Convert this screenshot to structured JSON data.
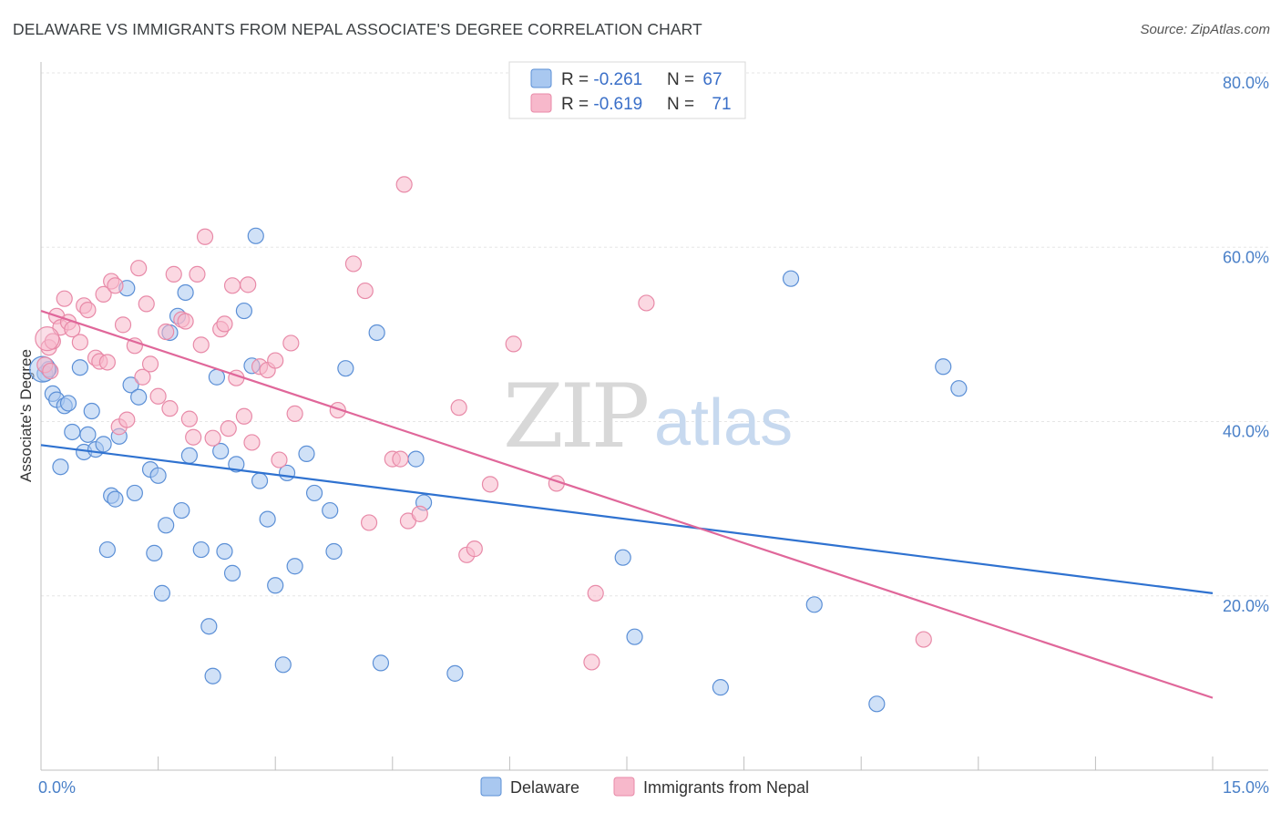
{
  "title": "DELAWARE VS IMMIGRANTS FROM NEPAL ASSOCIATE'S DEGREE CORRELATION CHART",
  "source": "Source: ZipAtlas.com",
  "watermark": {
    "zip": "ZIP",
    "atlas": "atlas"
  },
  "colors": {
    "delaware_fill": "#a9c8f0",
    "delaware_stroke": "#5b8fd6",
    "delaware_line": "#2f72d0",
    "nepal_fill": "#f7b8cb",
    "nepal_stroke": "#e88aa8",
    "nepal_line": "#e0679a",
    "grid": "#e6e6e6",
    "tick_label": "#4a80c8"
  },
  "legend": {
    "rows": [
      {
        "r_label": "R = ",
        "r_value": "-0.261",
        "n_label": "N = ",
        "n_value": "67"
      },
      {
        "r_label": "R = ",
        "r_value": "-0.619",
        "n_label": "N = ",
        "n_value": "71"
      }
    ]
  },
  "bottom_legend": [
    "Delaware",
    "Immigrants from Nepal"
  ],
  "chart_data": {
    "type": "scatter",
    "title": "DELAWARE VS IMMIGRANTS FROM NEPAL ASSOCIATE'S DEGREE CORRELATION CHART",
    "xlabel": "",
    "ylabel": "Associate's Degree",
    "xlim": [
      0,
      15
    ],
    "ylim": [
      0,
      80
    ],
    "x_tick_labels": [
      "0.0%",
      "15.0%"
    ],
    "y_ticks": [
      20,
      40,
      60,
      80
    ],
    "y_tick_labels": [
      "20.0%",
      "40.0%",
      "60.0%",
      "80.0%"
    ],
    "grid": true,
    "legend_position": "top-center",
    "series": [
      {
        "name": "Delaware",
        "r": -0.261,
        "n": 67,
        "trend": {
          "x": [
            0,
            15
          ],
          "y": [
            37.3,
            20.3
          ]
        },
        "points": [
          [
            0.05,
            45.5
          ],
          [
            0.1,
            46
          ],
          [
            0.15,
            43.2
          ],
          [
            0.2,
            42.5
          ],
          [
            0.25,
            34.8
          ],
          [
            0.3,
            41.8
          ],
          [
            0.35,
            42.1
          ],
          [
            0.4,
            38.8
          ],
          [
            0.5,
            46.2
          ],
          [
            0.55,
            36.5
          ],
          [
            0.6,
            38.5
          ],
          [
            0.65,
            41.2
          ],
          [
            0.7,
            36.8
          ],
          [
            0.8,
            37.4
          ],
          [
            0.85,
            25.3
          ],
          [
            0.9,
            31.5
          ],
          [
            0.95,
            31.1
          ],
          [
            1.0,
            38.3
          ],
          [
            1.1,
            55.3
          ],
          [
            1.15,
            44.2
          ],
          [
            1.2,
            31.8
          ],
          [
            1.25,
            42.8
          ],
          [
            1.4,
            34.5
          ],
          [
            1.45,
            24.9
          ],
          [
            1.5,
            33.8
          ],
          [
            1.55,
            20.3
          ],
          [
            1.6,
            28.1
          ],
          [
            1.65,
            50.2
          ],
          [
            1.75,
            52.1
          ],
          [
            1.8,
            29.8
          ],
          [
            1.85,
            54.8
          ],
          [
            1.9,
            36.1
          ],
          [
            2.05,
            25.3
          ],
          [
            2.15,
            16.5
          ],
          [
            2.2,
            10.8
          ],
          [
            2.25,
            45.1
          ],
          [
            2.3,
            36.6
          ],
          [
            2.35,
            25.1
          ],
          [
            2.45,
            22.6
          ],
          [
            2.5,
            35.1
          ],
          [
            2.6,
            52.7
          ],
          [
            2.7,
            46.4
          ],
          [
            2.75,
            61.3
          ],
          [
            2.8,
            33.2
          ],
          [
            2.9,
            28.8
          ],
          [
            3.0,
            21.2
          ],
          [
            3.1,
            12.1
          ],
          [
            3.15,
            34.1
          ],
          [
            3.25,
            23.4
          ],
          [
            3.4,
            36.3
          ],
          [
            3.5,
            31.8
          ],
          [
            3.7,
            29.8
          ],
          [
            3.75,
            25.1
          ],
          [
            3.9,
            46.1
          ],
          [
            4.3,
            50.2
          ],
          [
            4.35,
            12.3
          ],
          [
            4.8,
            35.7
          ],
          [
            4.9,
            30.7
          ],
          [
            5.3,
            11.1
          ],
          [
            7.45,
            24.4
          ],
          [
            7.6,
            15.3
          ],
          [
            8.7,
            9.5
          ],
          [
            9.6,
            56.4
          ],
          [
            9.9,
            19.0
          ],
          [
            10.7,
            7.6
          ],
          [
            11.55,
            46.3
          ],
          [
            11.75,
            43.8
          ]
        ]
      },
      {
        "name": "Immigrants from Nepal",
        "r": -0.619,
        "n": 71,
        "trend": {
          "x": [
            0,
            15
          ],
          "y": [
            52.7,
            8.3
          ]
        },
        "points": [
          [
            0.1,
            48.5
          ],
          [
            0.15,
            49.2
          ],
          [
            0.2,
            52.1
          ],
          [
            0.25,
            50.8
          ],
          [
            0.3,
            54.1
          ],
          [
            0.35,
            51.4
          ],
          [
            0.4,
            50.6
          ],
          [
            0.5,
            49.1
          ],
          [
            0.55,
            53.3
          ],
          [
            0.6,
            52.8
          ],
          [
            0.7,
            47.3
          ],
          [
            0.75,
            46.9
          ],
          [
            0.8,
            54.6
          ],
          [
            0.85,
            46.8
          ],
          [
            0.9,
            56.1
          ],
          [
            0.95,
            55.6
          ],
          [
            1.0,
            39.4
          ],
          [
            1.05,
            51.1
          ],
          [
            1.1,
            40.2
          ],
          [
            1.2,
            48.7
          ],
          [
            1.25,
            57.6
          ],
          [
            1.3,
            45.1
          ],
          [
            1.35,
            53.5
          ],
          [
            1.4,
            46.6
          ],
          [
            1.5,
            42.9
          ],
          [
            1.6,
            50.3
          ],
          [
            1.65,
            41.5
          ],
          [
            1.7,
            56.9
          ],
          [
            1.8,
            51.7
          ],
          [
            1.85,
            51.5
          ],
          [
            1.9,
            40.3
          ],
          [
            1.95,
            38.2
          ],
          [
            2.0,
            56.9
          ],
          [
            2.05,
            48.8
          ],
          [
            2.1,
            61.2
          ],
          [
            2.2,
            38.1
          ],
          [
            2.3,
            50.6
          ],
          [
            2.35,
            51.2
          ],
          [
            2.4,
            39.2
          ],
          [
            2.45,
            55.6
          ],
          [
            2.5,
            45.0
          ],
          [
            2.6,
            40.6
          ],
          [
            2.65,
            55.7
          ],
          [
            2.7,
            37.6
          ],
          [
            2.8,
            46.3
          ],
          [
            2.9,
            45.9
          ],
          [
            3.0,
            47.0
          ],
          [
            3.05,
            35.6
          ],
          [
            3.2,
            49.0
          ],
          [
            3.25,
            40.9
          ],
          [
            3.8,
            41.3
          ],
          [
            4.0,
            58.1
          ],
          [
            4.15,
            55.0
          ],
          [
            4.2,
            28.4
          ],
          [
            4.5,
            35.7
          ],
          [
            4.6,
            35.7
          ],
          [
            4.65,
            67.2
          ],
          [
            4.7,
            28.6
          ],
          [
            4.85,
            29.4
          ],
          [
            5.35,
            41.6
          ],
          [
            5.45,
            24.7
          ],
          [
            5.55,
            25.4
          ],
          [
            5.75,
            32.8
          ],
          [
            6.05,
            48.9
          ],
          [
            6.6,
            32.9
          ],
          [
            7.05,
            12.4
          ],
          [
            7.1,
            20.3
          ],
          [
            7.75,
            53.6
          ],
          [
            11.3,
            15.0
          ],
          [
            0.05,
            46.5
          ],
          [
            0.12,
            45.8
          ]
        ]
      }
    ]
  }
}
